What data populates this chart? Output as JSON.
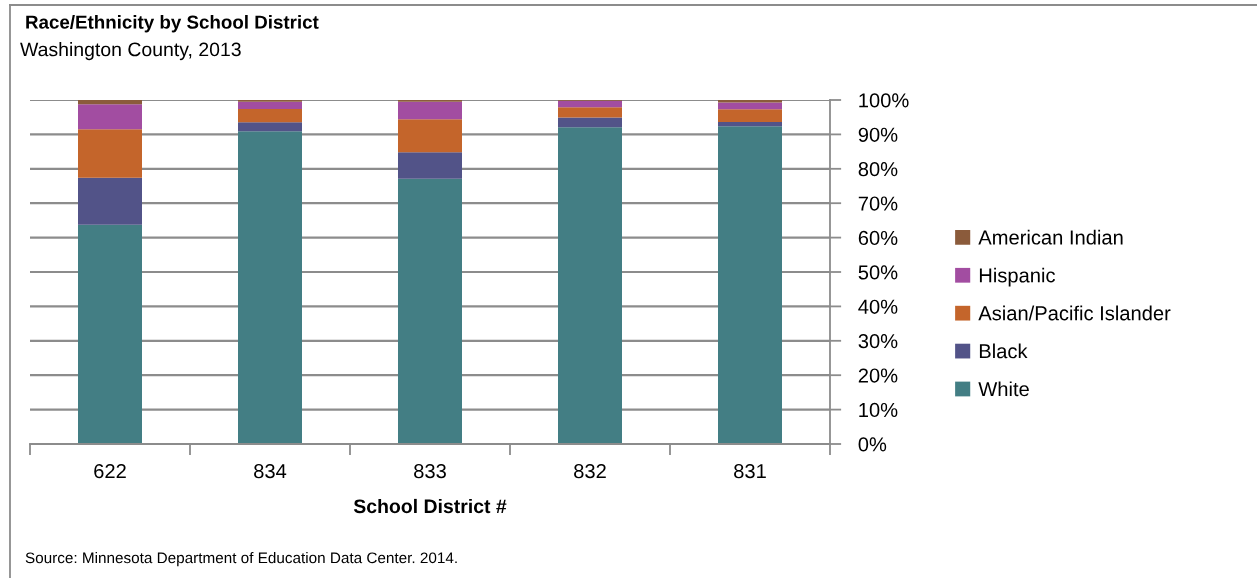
{
  "chart_data": {
    "type": "bar",
    "title": "Race/Ethnicity by School District",
    "subtitle": "Washington County, 2013",
    "xlabel": "School District #",
    "categories": [
      "622",
      "834",
      "833",
      "832",
      "831"
    ],
    "stacked": true,
    "series": [
      {
        "name": "White",
        "color": "#437e84",
        "values": [
          63.7,
          90.9,
          77.1,
          92.1,
          92.4
        ]
      },
      {
        "name": "Black",
        "color": "#525388",
        "values": [
          13.7,
          2.6,
          7.7,
          2.8,
          1.2
        ]
      },
      {
        "name": "Asian/Pacific Islander",
        "color": "#c4652b",
        "values": [
          14.1,
          3.9,
          9.6,
          3.0,
          3.7
        ]
      },
      {
        "name": "Hispanic",
        "color": "#a24da1",
        "values": [
          7.3,
          2.1,
          5.1,
          1.9,
          2.0
        ]
      },
      {
        "name": "American Indian",
        "color": "#8b5b3b",
        "values": [
          1.2,
          0.5,
          0.5,
          0.2,
          0.7
        ]
      }
    ],
    "ylim": [
      0,
      100
    ],
    "yticks": [
      {
        "value": 0,
        "label": "0%"
      },
      {
        "value": 10,
        "label": "10%"
      },
      {
        "value": 20,
        "label": "20%"
      },
      {
        "value": 30,
        "label": "30%"
      },
      {
        "value": 40,
        "label": "40%"
      },
      {
        "value": 50,
        "label": "50%"
      },
      {
        "value": 60,
        "label": "60%"
      },
      {
        "value": 70,
        "label": "70%"
      },
      {
        "value": 80,
        "label": "80%"
      },
      {
        "value": 90,
        "label": "90%"
      },
      {
        "value": 100,
        "label": "100%"
      }
    ],
    "grid": "y",
    "legend": "right",
    "annotations": [
      "Source: Minnesota Department of Education Data Center. 2014."
    ]
  }
}
